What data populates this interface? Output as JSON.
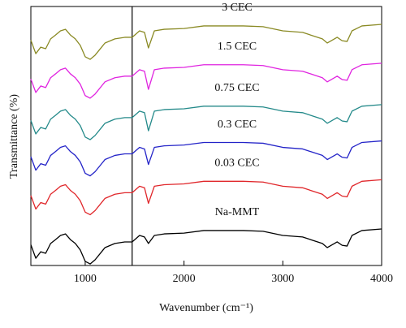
{
  "chart_data": {
    "type": "line",
    "x_label": "Wavenumber (cm⁻¹)",
    "y_label": "Transmittance (%)",
    "x": [
      450,
      500,
      550,
      600,
      650,
      700,
      750,
      800,
      850,
      900,
      950,
      1000,
      1050,
      1100,
      1200,
      1300,
      1400,
      1475,
      1550,
      1600,
      1640,
      1700,
      1800,
      2000,
      2200,
      2400,
      2600,
      2800,
      3000,
      3200,
      3400,
      3450,
      3550,
      3600,
      3650,
      3700,
      3800,
      4000
    ],
    "xlim": [
      450,
      4000
    ],
    "xticks": [
      1000,
      2000,
      3000,
      4000
    ],
    "ylim": [
      0,
      100
    ],
    "vline": 1475,
    "series": [
      {
        "name": "Na-MMT",
        "color": "#000000",
        "values": [
          8,
          2.8,
          5.3,
          4.7,
          8.5,
          10,
          11.6,
          12.2,
          10,
          8.5,
          6,
          1.6,
          0.6,
          2.2,
          6.9,
          8.5,
          9.1,
          9.1,
          11.6,
          11,
          8.5,
          11.6,
          12.2,
          12.5,
          13.5,
          13.5,
          13.5,
          13.2,
          11.6,
          11,
          8.5,
          6.9,
          9.1,
          7.8,
          7.5,
          11.6,
          13.5,
          14.1
        ]
      },
      {
        "name": "0.03 CEC",
        "color": "#e0262a",
        "values": [
          27,
          21.8,
          24.3,
          23.7,
          27.5,
          29,
          30.6,
          31.2,
          29,
          27.5,
          25,
          20.6,
          19.6,
          21.2,
          25.9,
          27.5,
          28.1,
          28.1,
          30.6,
          30,
          24,
          30.6,
          31.2,
          31.5,
          32.5,
          32.5,
          32.5,
          32.2,
          30.6,
          30,
          27.5,
          25.9,
          28.1,
          26.8,
          26.5,
          30.6,
          32.5,
          33.1
        ]
      },
      {
        "name": "0.3 CEC",
        "color": "#2424c8",
        "values": [
          42,
          36.8,
          39.3,
          38.7,
          42.5,
          44,
          45.6,
          46.2,
          44,
          42.5,
          40,
          35.6,
          34.6,
          36.2,
          40.9,
          42.5,
          43.1,
          43.1,
          45.6,
          45,
          39,
          45.6,
          46.2,
          46.5,
          47.5,
          47.5,
          47.5,
          47.2,
          45.6,
          45,
          42.5,
          40.9,
          43.1,
          41.8,
          41.5,
          45.6,
          47.5,
          48.1
        ]
      },
      {
        "name": "0.75 CEC",
        "color": "#248a8a",
        "values": [
          56,
          50.8,
          53.3,
          52.7,
          56.5,
          58,
          59.6,
          60.2,
          58,
          56.5,
          54,
          49.6,
          48.6,
          50.2,
          54.9,
          56.5,
          57.1,
          57.1,
          59.6,
          59,
          52,
          59.6,
          60.2,
          60.5,
          61.5,
          61.5,
          61.5,
          61.2,
          59.6,
          59,
          56.5,
          54.9,
          57.1,
          55.8,
          55.5,
          59.6,
          61.5,
          62.1
        ]
      },
      {
        "name": "1.5 CEC",
        "color": "#e024e0",
        "values": [
          72,
          66.8,
          69.3,
          68.7,
          72.5,
          74,
          75.6,
          76.2,
          74,
          72.5,
          70,
          65.6,
          64.6,
          66.2,
          70.9,
          72.5,
          73.1,
          73.1,
          75.6,
          75,
          68,
          75.6,
          76.2,
          76.5,
          77.5,
          77.5,
          77.5,
          77.2,
          75.6,
          75,
          72.5,
          70.9,
          73.1,
          71.8,
          71.5,
          75.6,
          77.5,
          78.1
        ]
      },
      {
        "name": "3 CEC",
        "color": "#8a8a24",
        "values": [
          87,
          81.8,
          84.3,
          83.7,
          87.5,
          89,
          90.6,
          91.2,
          89,
          87.5,
          85,
          80.6,
          79.6,
          81.2,
          85.9,
          87.5,
          88.1,
          88.1,
          90.6,
          90,
          84,
          90.6,
          91.2,
          91.5,
          92.5,
          92.5,
          92.5,
          92.2,
          90.6,
          90,
          87.5,
          85.9,
          88.1,
          86.8,
          86.5,
          90.6,
          92.5,
          93.1
        ]
      }
    ]
  }
}
